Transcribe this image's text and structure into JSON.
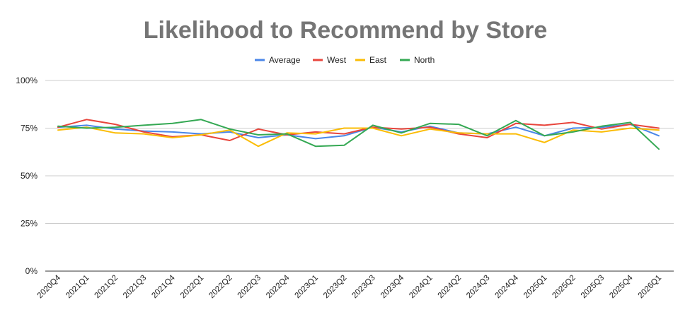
{
  "chart_data": {
    "type": "line",
    "title": "Likelihood to Recommend by Store",
    "xlabel": "",
    "ylabel": "",
    "ylim": [
      0,
      100
    ],
    "yticks": [
      "0%",
      "25%",
      "50%",
      "75%",
      "100%"
    ],
    "ytick_values": [
      0,
      25,
      50,
      75,
      100
    ],
    "grid": true,
    "legend_position": "top",
    "categories": [
      "2020Q4",
      "2021Q1",
      "2021Q2",
      "2021Q3",
      "2021Q4",
      "2022Q1",
      "2022Q2",
      "2022Q3",
      "2022Q4",
      "2023Q1",
      "2023Q2",
      "2023Q3",
      "2023Q4",
      "2024Q1",
      "2024Q2",
      "2024Q3",
      "2024Q4",
      "2025Q1",
      "2025Q2",
      "2025Q3",
      "2025Q4",
      "2026Q1"
    ],
    "series": [
      {
        "name": "Average",
        "color": "#4a86e8",
        "values": [
          75.5,
          76.5,
          74.5,
          73.5,
          73,
          72,
          73,
          70,
          71.5,
          69.5,
          71,
          75.5,
          73,
          76,
          72.5,
          72,
          75.5,
          71,
          75,
          75.5,
          77,
          71
        ]
      },
      {
        "name": "West",
        "color": "#e8453c",
        "values": [
          75.5,
          79.5,
          77,
          73,
          70.5,
          71.5,
          68.5,
          74.5,
          71.5,
          73,
          72,
          75.5,
          74.5,
          75.5,
          72,
          70,
          77.5,
          76.5,
          78,
          74.5,
          77,
          75
        ]
      },
      {
        "name": "East",
        "color": "#fbbc04",
        "values": [
          74,
          75.5,
          72.5,
          72,
          70,
          71.5,
          74,
          65.5,
          72.5,
          72,
          75,
          75,
          71,
          74.5,
          72.5,
          72,
          72,
          67.5,
          74,
          73,
          75,
          74
        ]
      },
      {
        "name": "North",
        "color": "#34a853",
        "values": [
          76,
          75,
          75.5,
          76.5,
          77.5,
          79.5,
          74.5,
          71.5,
          72,
          65.5,
          66,
          76.5,
          72.5,
          77.5,
          77,
          71,
          79,
          71,
          73,
          76,
          78,
          64
        ]
      }
    ]
  }
}
